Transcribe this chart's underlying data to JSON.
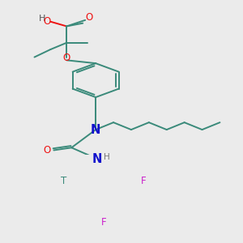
{
  "bg_color": "#ebebeb",
  "bond_color": "#3a8a7a",
  "bond_width": 1.4,
  "atom_colors": {
    "O": "#ee1111",
    "N": "#1111cc",
    "H": "#555555",
    "F": "#cc22cc",
    "T": "#3a8a7a",
    "C": "#3a8a7a"
  },
  "afs": 8.5
}
